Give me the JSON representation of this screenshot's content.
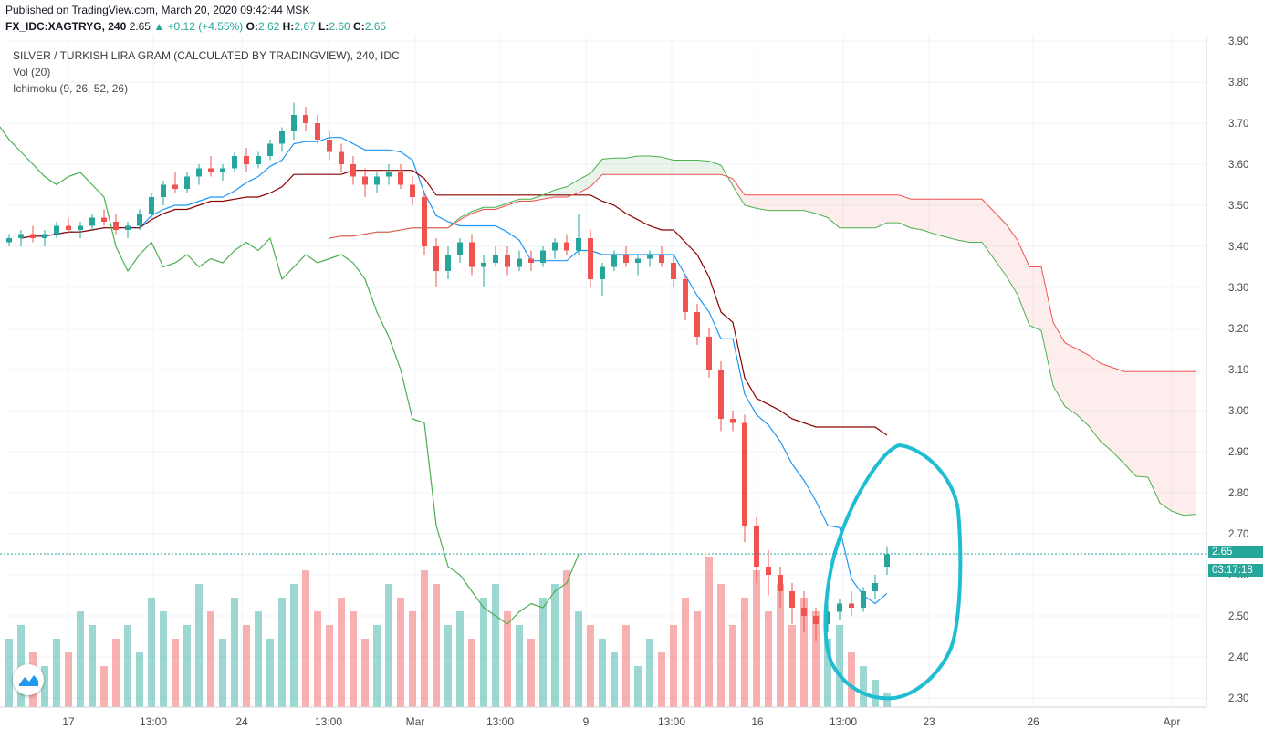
{
  "header": {
    "published": "Published on TradingView.com, March 20, 2020 09:42:44 MSK",
    "symbol": "FX_IDC:XAGTRYG, 240",
    "last": "2.65",
    "change": "▲ +0.12 (+4.55%)",
    "o_label": "O:",
    "o_val": "2.62",
    "h_label": "H:",
    "h_val": "2.67",
    "l_label": "L:",
    "l_val": "2.60",
    "c_label": "C:",
    "c_val": "2.65"
  },
  "legend": {
    "title": "SILVER / TURKISH LIRA GRAM (CALCULATED BY TRADINGVIEW), 240, IDC",
    "vol": "Vol (20)",
    "ichimoku": "Ichimoku (9, 26, 52, 26)"
  },
  "price_label": "2.65",
  "countdown_label": "03:17:18",
  "colors": {
    "up": "#26a69a",
    "down": "#ef5350",
    "tenkan": "#2196f3",
    "kijun": "#8b0000",
    "chikou": "#4caf50",
    "span_a": "#4caf50",
    "span_b": "#ef5350",
    "annotation": "#1fbcd2",
    "axis_text": "#4a4a4a"
  },
  "chart_data": {
    "type": "candlestick",
    "ylim": [
      2.28,
      3.92
    ],
    "y_ticks": [
      "3.90",
      "3.80",
      "3.70",
      "3.60",
      "3.50",
      "3.40",
      "3.30",
      "3.20",
      "3.10",
      "3.00",
      "2.90",
      "2.80",
      "2.70",
      "2.60",
      "2.50",
      "2.40",
      "2.30"
    ],
    "x_ticks": [
      "17",
      "13:00",
      "24",
      "13:00",
      "Mar",
      "13:00",
      "9",
      "13:00",
      "16",
      "13:00",
      "23",
      "26",
      "Apr"
    ],
    "series": [
      {
        "name": "Price",
        "candles": [
          [
            3.41,
            3.43,
            3.4,
            3.42
          ],
          [
            3.42,
            3.44,
            3.4,
            3.43
          ],
          [
            3.43,
            3.45,
            3.41,
            3.42
          ],
          [
            3.42,
            3.44,
            3.4,
            3.43
          ],
          [
            3.43,
            3.46,
            3.42,
            3.45
          ],
          [
            3.45,
            3.47,
            3.43,
            3.44
          ],
          [
            3.44,
            3.46,
            3.42,
            3.45
          ],
          [
            3.45,
            3.48,
            3.44,
            3.47
          ],
          [
            3.47,
            3.49,
            3.45,
            3.46
          ],
          [
            3.46,
            3.48,
            3.43,
            3.44
          ],
          [
            3.44,
            3.46,
            3.42,
            3.45
          ],
          [
            3.45,
            3.49,
            3.44,
            3.48
          ],
          [
            3.48,
            3.53,
            3.47,
            3.52
          ],
          [
            3.52,
            3.56,
            3.5,
            3.55
          ],
          [
            3.55,
            3.58,
            3.53,
            3.54
          ],
          [
            3.54,
            3.58,
            3.53,
            3.57
          ],
          [
            3.57,
            3.6,
            3.55,
            3.59
          ],
          [
            3.59,
            3.62,
            3.57,
            3.58
          ],
          [
            3.58,
            3.6,
            3.56,
            3.59
          ],
          [
            3.59,
            3.63,
            3.58,
            3.62
          ],
          [
            3.62,
            3.64,
            3.58,
            3.6
          ],
          [
            3.6,
            3.63,
            3.59,
            3.62
          ],
          [
            3.62,
            3.66,
            3.61,
            3.65
          ],
          [
            3.65,
            3.69,
            3.63,
            3.68
          ],
          [
            3.68,
            3.75,
            3.66,
            3.72
          ],
          [
            3.72,
            3.74,
            3.68,
            3.7
          ],
          [
            3.7,
            3.72,
            3.65,
            3.66
          ],
          [
            3.66,
            3.68,
            3.61,
            3.63
          ],
          [
            3.63,
            3.65,
            3.58,
            3.6
          ],
          [
            3.6,
            3.62,
            3.55,
            3.57
          ],
          [
            3.57,
            3.59,
            3.52,
            3.55
          ],
          [
            3.55,
            3.58,
            3.53,
            3.57
          ],
          [
            3.57,
            3.6,
            3.55,
            3.58
          ],
          [
            3.58,
            3.6,
            3.54,
            3.55
          ],
          [
            3.55,
            3.57,
            3.5,
            3.52
          ],
          [
            3.52,
            3.53,
            3.38,
            3.4
          ],
          [
            3.4,
            3.42,
            3.3,
            3.34
          ],
          [
            3.34,
            3.4,
            3.32,
            3.38
          ],
          [
            3.38,
            3.42,
            3.36,
            3.41
          ],
          [
            3.41,
            3.43,
            3.33,
            3.35
          ],
          [
            3.35,
            3.38,
            3.3,
            3.36
          ],
          [
            3.36,
            3.4,
            3.35,
            3.38
          ],
          [
            3.38,
            3.4,
            3.33,
            3.35
          ],
          [
            3.35,
            3.39,
            3.34,
            3.37
          ],
          [
            3.37,
            3.39,
            3.34,
            3.36
          ],
          [
            3.36,
            3.4,
            3.35,
            3.39
          ],
          [
            3.39,
            3.42,
            3.37,
            3.41
          ],
          [
            3.41,
            3.43,
            3.38,
            3.39
          ],
          [
            3.39,
            3.48,
            3.38,
            3.42
          ],
          [
            3.42,
            3.44,
            3.3,
            3.32
          ],
          [
            3.32,
            3.36,
            3.28,
            3.35
          ],
          [
            3.35,
            3.39,
            3.34,
            3.38
          ],
          [
            3.38,
            3.4,
            3.35,
            3.36
          ],
          [
            3.36,
            3.38,
            3.33,
            3.37
          ],
          [
            3.37,
            3.39,
            3.35,
            3.38
          ],
          [
            3.38,
            3.4,
            3.35,
            3.36
          ],
          [
            3.36,
            3.38,
            3.3,
            3.32
          ],
          [
            3.32,
            3.33,
            3.22,
            3.24
          ],
          [
            3.24,
            3.26,
            3.16,
            3.18
          ],
          [
            3.18,
            3.2,
            3.08,
            3.1
          ],
          [
            3.1,
            3.12,
            2.95,
            2.98
          ],
          [
            2.98,
            3.0,
            2.95,
            2.97
          ],
          [
            2.97,
            2.99,
            2.68,
            2.72
          ],
          [
            2.72,
            2.74,
            2.58,
            2.62
          ],
          [
            2.62,
            2.66,
            2.55,
            2.6
          ],
          [
            2.6,
            2.62,
            2.52,
            2.56
          ],
          [
            2.56,
            2.58,
            2.48,
            2.52
          ],
          [
            2.52,
            2.56,
            2.46,
            2.5
          ],
          [
            2.5,
            2.52,
            2.44,
            2.48
          ],
          [
            2.48,
            2.53,
            2.46,
            2.51
          ],
          [
            2.51,
            2.54,
            2.49,
            2.53
          ],
          [
            2.53,
            2.56,
            2.5,
            2.52
          ],
          [
            2.52,
            2.57,
            2.51,
            2.56
          ],
          [
            2.56,
            2.6,
            2.54,
            2.58
          ],
          [
            2.62,
            2.67,
            2.6,
            2.65
          ]
        ]
      },
      {
        "name": "Vol",
        "values": [
          0.5,
          0.6,
          0.4,
          0.3,
          0.5,
          0.4,
          0.7,
          0.6,
          0.3,
          0.5,
          0.6,
          0.4,
          0.8,
          0.7,
          0.5,
          0.6,
          0.9,
          0.7,
          0.5,
          0.8,
          0.6,
          0.7,
          0.5,
          0.8,
          0.9,
          1.0,
          0.7,
          0.6,
          0.8,
          0.7,
          0.5,
          0.6,
          0.9,
          0.8,
          0.7,
          1.0,
          0.9,
          0.6,
          0.7,
          0.5,
          0.8,
          0.9,
          0.7,
          0.6,
          0.5,
          0.8,
          0.9,
          1.0,
          0.7,
          0.6,
          0.5,
          0.4,
          0.6,
          0.3,
          0.5,
          0.4,
          0.6,
          0.8,
          0.7,
          1.1,
          0.9,
          0.6,
          0.8,
          1.0,
          0.7,
          0.9,
          0.6,
          0.8,
          0.7,
          0.5,
          0.6,
          0.4,
          0.3,
          0.2,
          0.1
        ]
      }
    ],
    "last_price": 2.65
  }
}
